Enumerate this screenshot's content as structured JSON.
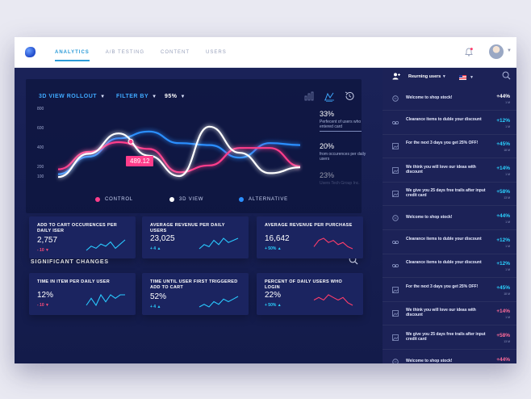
{
  "nav": {
    "items": [
      "ANALYTICS",
      "A/B TESTING",
      "CONTENT",
      "USERS"
    ]
  },
  "chart_panel": {
    "view_label": "3D VIEW ROLLOUT",
    "filter_label": "FILTER BY",
    "percent_select": "95%",
    "tooltip_value": "489.12",
    "stats": [
      {
        "pct": "33%",
        "desc": "Perfecent of users who entered card"
      },
      {
        "pct": "20%",
        "desc": "from occurences per daily users"
      },
      {
        "pct": "23%",
        "desc": "Users Tech Group Inc."
      }
    ],
    "legend": [
      "CONTROL",
      "3D VIEW",
      "ALTERNATIVE"
    ]
  },
  "chart_data": {
    "type": "line",
    "ylim": [
      0,
      800
    ],
    "yticks": [
      "800",
      "600",
      "400",
      "200",
      "100"
    ],
    "x": [
      0,
      1,
      2,
      3,
      4,
      5,
      6,
      7,
      8
    ],
    "series": [
      {
        "name": "CONTROL",
        "color": "#ff3d8b",
        "values": [
          170,
          350,
          450,
          380,
          140,
          210,
          390,
          390,
          200
        ]
      },
      {
        "name": "3D VIEW",
        "color": "#ffffff",
        "values": [
          90,
          330,
          540,
          310,
          100,
          610,
          340,
          130,
          190
        ]
      },
      {
        "name": "ALTERNATIVE",
        "color": "#2b8fff",
        "values": [
          120,
          300,
          490,
          560,
          440,
          420,
          290,
          440,
          420
        ]
      }
    ]
  },
  "significant": {
    "title": "SIGNIFICANT CHANGES",
    "cards": [
      {
        "title": "ADD TO CART OCCURENCES PER DAILY ISER",
        "value": "2,757",
        "delta": "- 10",
        "dir": "down",
        "spark_color": "#29c9ff",
        "spark": [
          3,
          5,
          4,
          6,
          5,
          7,
          4,
          6,
          8
        ]
      },
      {
        "title": "AVERAGE REVENUE PER DAILY USERS",
        "value": "23,025",
        "delta": "+ 4",
        "dir": "up",
        "spark_color": "#29c9ff",
        "spark": [
          2,
          4,
          3,
          6,
          4,
          7,
          5,
          6,
          7
        ]
      },
      {
        "title": "AVERAGE REVENUE PER PURCHASE",
        "value": "16,642",
        "delta": "+ 50%",
        "dir": "up",
        "spark_color": "#ff3d6b",
        "spark": [
          4,
          7,
          8,
          6,
          7,
          5,
          6,
          4,
          3
        ]
      },
      {
        "title": "TIME IN ITEM PER DAILY USER",
        "value": "12%",
        "delta": "- 10",
        "dir": "down",
        "spark_color": "#29c9ff",
        "spark": [
          3,
          5,
          3,
          6,
          4,
          6,
          5,
          6,
          6
        ]
      },
      {
        "title": "TIME UNTIL USER FIRST TRIGGERED ADD TO CART",
        "value": "52%",
        "delta": "+ 4",
        "dir": "up",
        "spark_color": "#29c9ff",
        "spark": [
          3,
          4,
          3,
          5,
          4,
          6,
          5,
          6,
          7
        ]
      },
      {
        "title": "PERCENT OF DAILY USERS WHO LOGIN",
        "value": "22%",
        "delta": "+ 50%",
        "dir": "up",
        "spark_color": "#ff3d6b",
        "spark": [
          5,
          6,
          5,
          7,
          6,
          5,
          6,
          4,
          3
        ]
      }
    ]
  },
  "sidebar": {
    "header": "Reurning users",
    "rows": [
      {
        "icon": "chat-icon",
        "text": "Welcome to shop stock!",
        "value": "+44%",
        "time": "1 M",
        "color": "#ffffff"
      },
      {
        "icon": "voicemail-icon",
        "text": "Clearance items to duble your discount",
        "value": "+12%",
        "time": "1 M",
        "color": "#2bd1ff"
      },
      {
        "icon": "image-icon",
        "text": "For the next 3 days you get 25% OFF!",
        "value": "+45%",
        "time": "18 M",
        "color": "#2bd1ff"
      },
      {
        "icon": "image-icon",
        "text": "We think you will love our ideas with discount",
        "value": "+14%",
        "time": "1 M",
        "color": "#2bd1ff"
      },
      {
        "icon": "image-icon",
        "text": "We give you 25 days free trails after input credit card",
        "value": "+58%",
        "time": "13 M",
        "color": "#2bd1ff"
      },
      {
        "icon": "chat-icon",
        "text": "Welcome to shop stock!",
        "value": "+44%",
        "time": "1 M",
        "color": "#2bd1ff"
      },
      {
        "icon": "voicemail-icon",
        "text": "Clearance items to duble your discount",
        "value": "+12%",
        "time": "1 M",
        "color": "#2bd1ff"
      },
      {
        "icon": "voicemail-icon",
        "text": "Clearance items to duble your discount",
        "value": "+12%",
        "time": "1 M",
        "color": "#2bd1ff"
      },
      {
        "icon": "image-icon",
        "text": "For the next 3 days you get 25% OFF!",
        "value": "+45%",
        "time": "18 M",
        "color": "#2bd1ff"
      },
      {
        "icon": "image-icon",
        "text": "We think you will love our ideas with discount",
        "value": "+14%",
        "time": "1 M",
        "color": "#ff6b9a"
      },
      {
        "icon": "image-icon",
        "text": "We give you 25 days free trails after input credit card",
        "value": "+58%",
        "time": "13 M",
        "color": "#ff6b9a"
      },
      {
        "icon": "chat-icon",
        "text": "Welcome to shop stock!",
        "value": "+44%",
        "time": "1 M",
        "color": "#ff6b9a"
      }
    ]
  }
}
